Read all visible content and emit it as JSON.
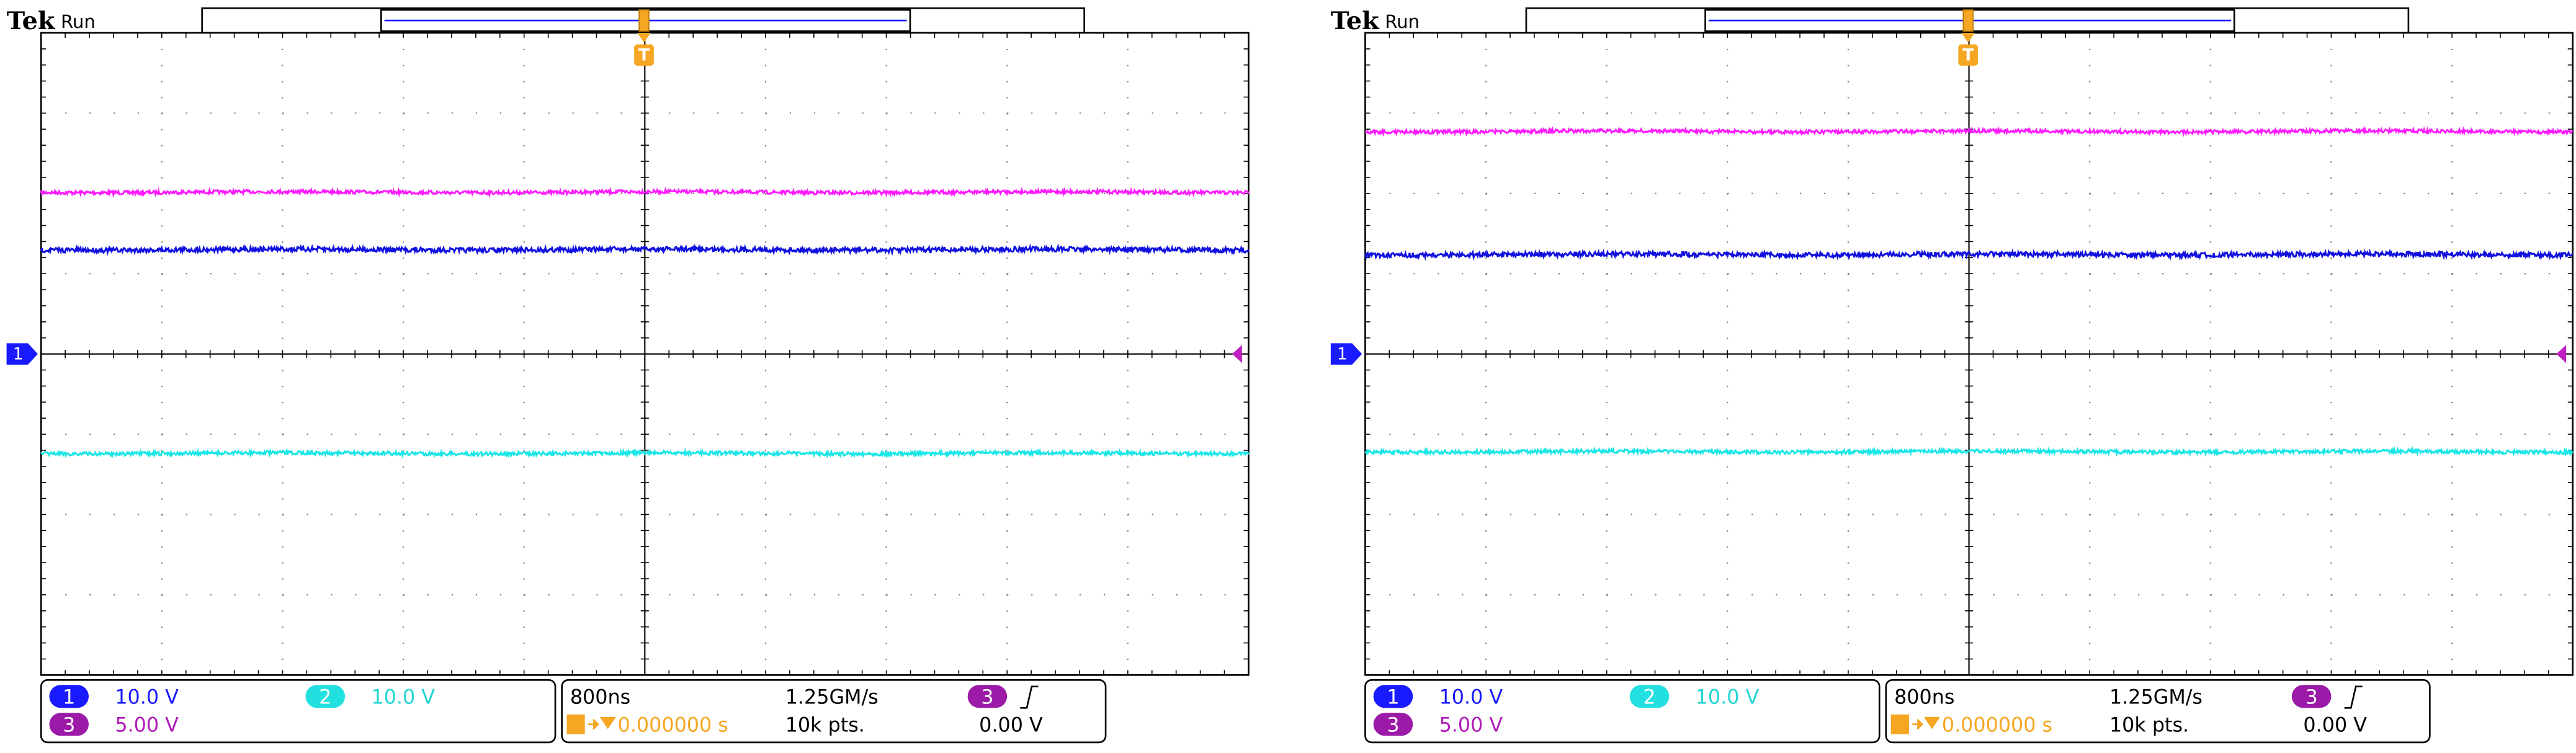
{
  "screens": [
    {
      "brand": "Tek",
      "status": "Run",
      "trigger_marker": "T",
      "ground_marker": "1",
      "channels": [
        {
          "number": "1",
          "scale": "10.0 V"
        },
        {
          "number": "2",
          "scale": "10.0 V"
        },
        {
          "number": "3",
          "scale": "5.00 V"
        }
      ],
      "timebase": "800ns",
      "sample_rate": "1.25GM/s",
      "trigger_channel": "3",
      "trigger_position": "0.000000 s",
      "record_length": "10k pts.",
      "trigger_level": "0.00 V"
    },
    {
      "brand": "Tek",
      "status": "Run",
      "trigger_marker": "T",
      "ground_marker": "1",
      "channels": [
        {
          "number": "1",
          "scale": "10.0 V"
        },
        {
          "number": "2",
          "scale": "10.0 V"
        },
        {
          "number": "3",
          "scale": "5.00 V"
        }
      ],
      "timebase": "800ns",
      "sample_rate": "1.25GM/s",
      "trigger_channel": "3",
      "trigger_position": "0.000000 s",
      "record_length": "10k pts.",
      "trigger_level": "0.00 V"
    }
  ]
}
